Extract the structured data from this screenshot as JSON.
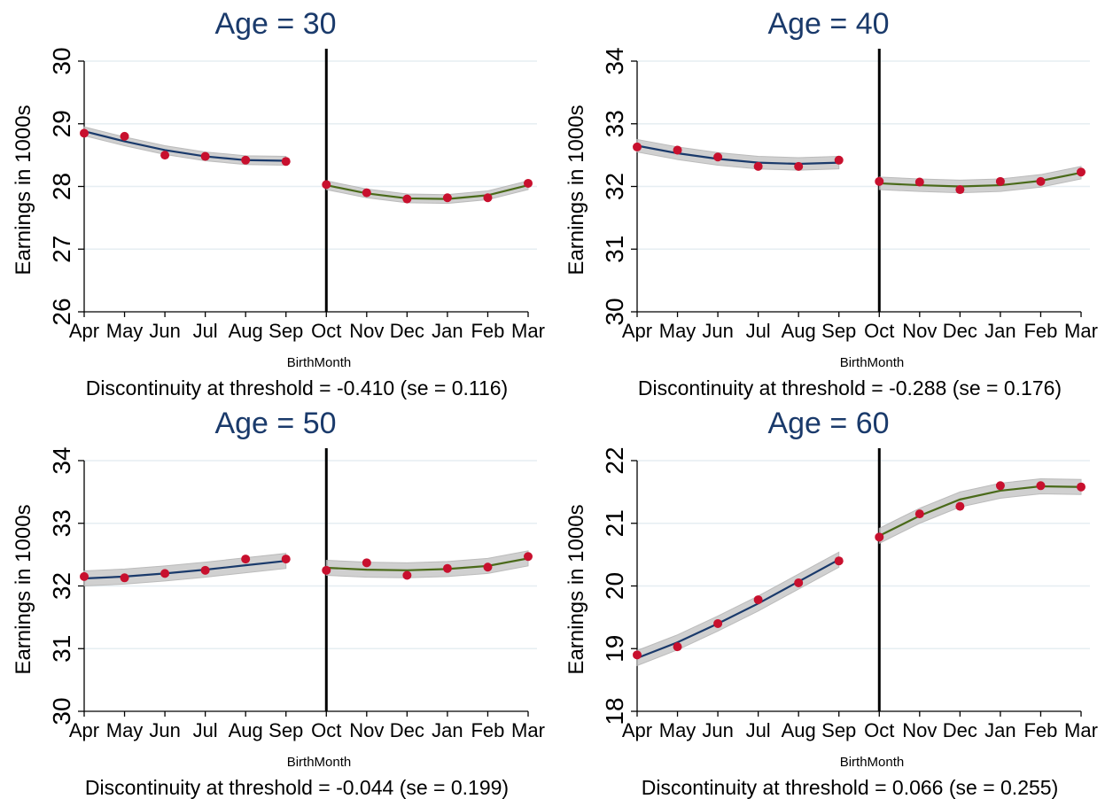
{
  "chart_data": [
    {
      "type": "line",
      "title": "Age = 30",
      "ylabel": "Earnings in 1000s",
      "xlabel": "BirthMonth",
      "note": "Discontinuity at threshold = -0.410 (se = 0.116)",
      "ylim": [
        26,
        30
      ],
      "yticks": [
        26,
        27,
        28,
        29,
        30
      ],
      "categories": [
        "Apr",
        "May",
        "Jun",
        "Jul",
        "Aug",
        "Sep",
        "Oct",
        "Nov",
        "Dec",
        "Jan",
        "Feb",
        "Mar"
      ],
      "threshold": "Oct",
      "points": [
        28.85,
        28.8,
        28.5,
        28.48,
        28.42,
        28.4,
        28.03,
        27.9,
        27.8,
        27.82,
        27.82,
        28.05
      ],
      "fit_left": [
        28.88,
        28.72,
        28.58,
        28.48,
        28.42,
        28.41
      ],
      "fit_right": [
        28.02,
        27.89,
        27.81,
        27.8,
        27.86,
        28.02
      ],
      "ci_halfwidth": 0.07
    },
    {
      "type": "line",
      "title": "Age = 40",
      "ylabel": "Earnings in 1000s",
      "xlabel": "BirthMonth",
      "note": "Discontinuity at threshold = -0.288 (se = 0.176)",
      "ylim": [
        30,
        34
      ],
      "yticks": [
        30,
        31,
        32,
        33,
        34
      ],
      "categories": [
        "Apr",
        "May",
        "Jun",
        "Jul",
        "Aug",
        "Sep",
        "Oct",
        "Nov",
        "Dec",
        "Jan",
        "Feb",
        "Mar"
      ],
      "threshold": "Oct",
      "points": [
        32.63,
        32.58,
        32.47,
        32.32,
        32.32,
        32.42,
        32.08,
        32.07,
        31.95,
        32.08,
        32.08,
        32.23
      ],
      "fit_left": [
        32.65,
        32.53,
        32.44,
        32.38,
        32.36,
        32.38
      ],
      "fit_right": [
        32.05,
        32.02,
        32.0,
        32.02,
        32.09,
        32.22
      ],
      "ci_halfwidth": 0.1
    },
    {
      "type": "line",
      "title": "Age = 50",
      "ylabel": "Earnings in 1000s",
      "xlabel": "BirthMonth",
      "note": "Discontinuity at threshold = -0.044 (se = 0.199)",
      "ylim": [
        30,
        34
      ],
      "yticks": [
        30,
        31,
        32,
        33,
        34
      ],
      "categories": [
        "Apr",
        "May",
        "Jun",
        "Jul",
        "Aug",
        "Sep",
        "Oct",
        "Nov",
        "Dec",
        "Jan",
        "Feb",
        "Mar"
      ],
      "threshold": "Oct",
      "points": [
        32.15,
        32.13,
        32.2,
        32.25,
        32.43,
        32.43,
        32.25,
        32.37,
        32.17,
        32.28,
        32.3,
        32.47
      ],
      "fit_left": [
        32.12,
        32.15,
        32.2,
        32.26,
        32.33,
        32.4
      ],
      "fit_right": [
        32.29,
        32.26,
        32.25,
        32.27,
        32.32,
        32.44
      ],
      "ci_halfwidth": 0.12
    },
    {
      "type": "line",
      "title": "Age = 60",
      "ylabel": "Earnings in 1000s",
      "xlabel": "BirthMonth",
      "note": "Discontinuity at threshold = 0.066 (se = 0.255)",
      "ylim": [
        18,
        22
      ],
      "yticks": [
        18,
        19,
        20,
        21,
        22
      ],
      "categories": [
        "Apr",
        "May",
        "Jun",
        "Jul",
        "Aug",
        "Sep",
        "Oct",
        "Nov",
        "Dec",
        "Jan",
        "Feb",
        "Mar"
      ],
      "threshold": "Oct",
      "points": [
        18.9,
        19.03,
        19.4,
        19.78,
        20.05,
        20.4,
        20.78,
        21.15,
        21.27,
        21.6,
        21.6,
        21.58
      ],
      "fit_left": [
        18.85,
        19.1,
        19.4,
        19.72,
        20.07,
        20.42
      ],
      "fit_right": [
        20.8,
        21.12,
        21.38,
        21.52,
        21.59,
        21.58
      ],
      "ci_halfwidth": 0.12
    }
  ],
  "colors": {
    "title": "#1a3a6b",
    "fit_left": "#1a3a6b",
    "fit_right": "#4a6a1a",
    "points": "#c8102e",
    "ci_band": "#c8c8c8",
    "threshold_line": "#000000"
  }
}
